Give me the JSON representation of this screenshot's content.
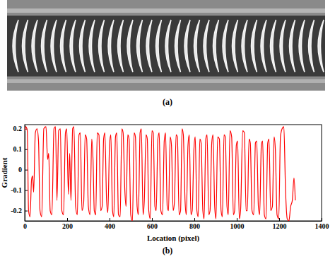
{
  "panel_labels": [
    "(a)",
    "(b)"
  ],
  "chart_data": {
    "type": "line",
    "x_label": "Location (pixel)",
    "y_label": "Gradient",
    "color": "#ff0000",
    "xlim": [
      0,
      1400
    ],
    "xticks": [
      0,
      200,
      400,
      600,
      800,
      1000,
      1200,
      1400
    ],
    "ylim": [
      -0.25,
      0.22
    ],
    "yticks": [
      -0.2,
      -0.1,
      0,
      0.1,
      0.2
    ],
    "grid": false,
    "x": [
      0,
      5,
      12,
      18,
      25,
      32,
      37,
      42,
      50,
      58,
      65,
      72,
      80,
      90,
      100,
      108,
      113,
      120,
      128,
      138,
      145,
      152,
      160,
      168,
      175,
      183,
      192,
      198,
      206,
      212,
      218,
      226,
      232,
      240,
      248,
      256,
      262,
      270,
      278,
      285,
      292,
      300,
      308,
      316,
      322,
      328,
      335,
      342,
      350,
      358,
      365,
      372,
      378,
      386,
      392,
      400,
      406,
      414,
      420,
      428,
      434,
      442,
      450,
      458,
      464,
      472,
      478,
      486,
      492,
      500,
      508,
      516,
      522,
      530,
      536,
      544,
      550,
      558,
      564,
      572,
      578,
      585,
      592,
      600,
      606,
      614,
      620,
      628,
      634,
      642,
      650,
      658,
      664,
      672,
      678,
      686,
      692,
      700,
      706,
      714,
      720,
      728,
      735,
      742,
      748,
      756,
      762,
      770,
      776,
      784,
      790,
      798,
      804,
      812,
      818,
      826,
      832,
      840,
      846,
      854,
      860,
      868,
      874,
      882,
      888,
      896,
      902,
      910,
      918,
      926,
      932,
      940,
      946,
      954,
      960,
      968,
      976,
      984,
      990,
      998,
      1004,
      1012,
      1018,
      1028,
      1036,
      1044,
      1050,
      1058,
      1064,
      1072,
      1080,
      1088,
      1094,
      1102,
      1108,
      1116,
      1122,
      1130,
      1138,
      1146,
      1152,
      1160,
      1168,
      1176,
      1182,
      1190,
      1198,
      1206,
      1214,
      1222,
      1230,
      1238,
      1246,
      1254,
      1262,
      1270,
      1276
    ],
    "values": [
      0.19,
      0.21,
      0.19,
      -0.2,
      -0.23,
      -0.05,
      -0.03,
      -0.11,
      0.18,
      0.2,
      0.14,
      -0.2,
      -0.23,
      0.2,
      0.21,
      0.05,
      0.08,
      -0.2,
      -0.22,
      0.2,
      0.21,
      -0.15,
      0.19,
      0.2,
      -0.2,
      -0.22,
      0.18,
      0.2,
      -0.12,
      0.08,
      -0.15,
      0.2,
      0.21,
      -0.18,
      -0.22,
      0.17,
      0.18,
      -0.2,
      -0.16,
      0.17,
      0.15,
      -0.18,
      -0.22,
      0.15,
      0.05,
      -0.2,
      -0.22,
      0.18,
      0.17,
      -0.2,
      -0.18,
      0.15,
      0.18,
      -0.15,
      -0.21,
      0.12,
      0.17,
      -0.2,
      -0.23,
      0.16,
      0.18,
      -0.22,
      -0.23,
      0.2,
      0.18,
      -0.1,
      -0.18,
      0.17,
      0.15,
      -0.22,
      -0.25,
      0.18,
      0.16,
      -0.18,
      -0.22,
      0.18,
      0.2,
      -0.22,
      -0.15,
      0.17,
      0.15,
      -0.2,
      -0.24,
      0.19,
      0.18,
      -0.18,
      -0.2,
      0.15,
      0.18,
      -0.2,
      -0.22,
      0.14,
      0.18,
      -0.18,
      -0.2,
      0.16,
      0.12,
      -0.2,
      -0.16,
      0.17,
      0.16,
      -0.22,
      -0.2,
      0.2,
      0.17,
      -0.15,
      -0.22,
      0.12,
      0.17,
      -0.22,
      -0.2,
      0.1,
      0.16,
      -0.2,
      -0.23,
      0.15,
      0.13,
      -0.2,
      -0.24,
      0.15,
      0.17,
      -0.22,
      -0.2,
      0.13,
      0.17,
      -0.18,
      -0.24,
      0.16,
      0.15,
      -0.2,
      -0.23,
      0.17,
      0.16,
      -0.18,
      -0.22,
      0.19,
      0.16,
      -0.22,
      -0.2,
      0.12,
      0.14,
      -0.24,
      -0.2,
      0.19,
      0.18,
      -0.2,
      -0.2,
      0.15,
      0.13,
      -0.2,
      -0.22,
      0.13,
      0.14,
      -0.18,
      -0.22,
      0.12,
      0.14,
      -0.22,
      -0.24,
      0.13,
      0.15,
      -0.2,
      -0.18,
      0.16,
      0.1,
      -0.22,
      -0.24,
      0.16,
      0.2,
      0.21,
      -0.1,
      -0.24,
      -0.25,
      -0.18,
      -0.15,
      -0.04,
      -0.15
    ]
  }
}
